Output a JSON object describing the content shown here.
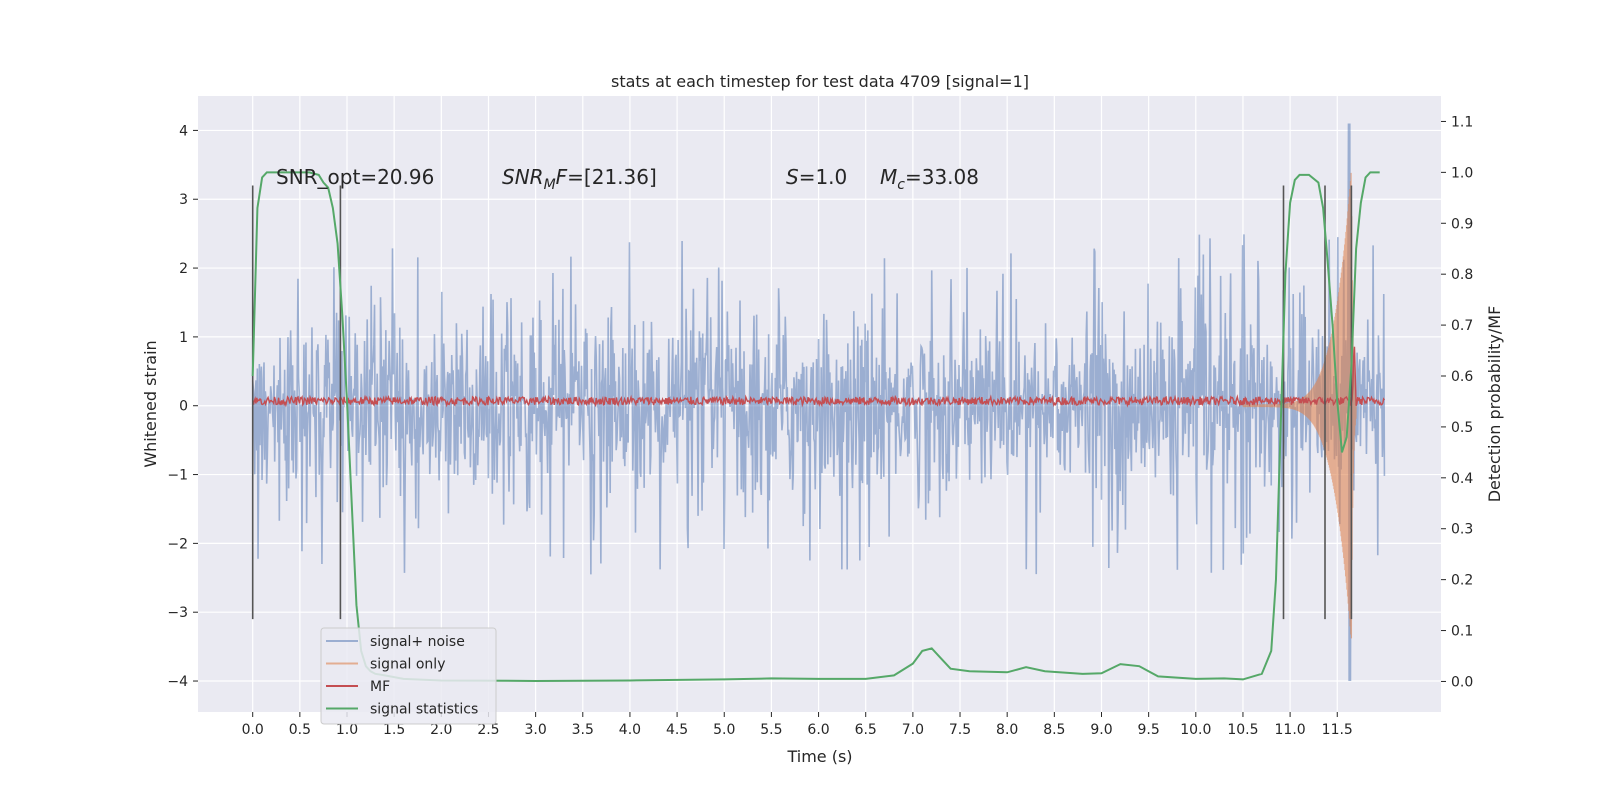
{
  "chart_data": {
    "type": "line",
    "title": "stats at each timestep for test data 4709 [signal=1]",
    "xlabel": "Time (s)",
    "ylabel_left": "Whitened strain",
    "ylabel_right": "Detection probability/MF",
    "xlim": [
      -0.58,
      12.6
    ],
    "ylim_left": [
      -4.45,
      4.5
    ],
    "ylim_right": [
      -0.06,
      1.15
    ],
    "x_ticks": [
      0.0,
      0.5,
      1.0,
      1.5,
      2.0,
      2.5,
      3.0,
      3.5,
      4.0,
      4.5,
      5.0,
      5.5,
      6.0,
      6.5,
      7.0,
      7.5,
      8.0,
      8.5,
      9.0,
      9.5,
      10.0,
      10.5,
      11.0,
      11.5
    ],
    "x_tick_labels": [
      "0.0",
      "0.5",
      "1.0",
      "1.5",
      "2.0",
      "2.5",
      "3.0",
      "3.5",
      "4.0",
      "4.5",
      "5.0",
      "5.5",
      "6.0",
      "6.5",
      "7.0",
      "7.5",
      "8.0",
      "8.5",
      "9.0",
      "9.5",
      "10.0",
      "10.5",
      "11.0",
      "11.5"
    ],
    "y_left_ticks": [
      -4,
      -3,
      -2,
      -1,
      0,
      1,
      2,
      3,
      4
    ],
    "y_left_tick_labels": [
      "−4",
      "−3",
      "−2",
      "−1",
      "0",
      "1",
      "2",
      "3",
      "4"
    ],
    "y_right_ticks": [
      0.0,
      0.1,
      0.2,
      0.3,
      0.4,
      0.5,
      0.6,
      0.7,
      0.8,
      0.9,
      1.0,
      1.1
    ],
    "y_right_tick_labels": [
      "0.0",
      "0.1",
      "0.2",
      "0.3",
      "0.4",
      "0.5",
      "0.6",
      "0.7",
      "0.8",
      "0.9",
      "1.0",
      "1.1"
    ],
    "grid": true,
    "legend_position": "lower-left",
    "annotations": {
      "snr_opt": "SNR_opt=20.96",
      "snr_mf_sym": "SNR",
      "snr_mf_sub": "M",
      "snr_mf_rest": "F",
      "snr_mf_value": "=[21.36]",
      "s_sym": "S",
      "s_value": "=1.0",
      "mc_sym": "M",
      "mc_sub": "c",
      "mc_value": "=33.08"
    },
    "marker_lines_x": [
      0.0,
      0.93,
      10.93,
      11.37,
      11.65
    ],
    "marker_line_range": [
      -3.1,
      3.2
    ],
    "series": [
      {
        "name": "signal+ noise",
        "color": "#4c72b0",
        "x_range": [
          0.0,
          12.0
        ],
        "rms": 1.0,
        "peak_max": 4.1,
        "peak_min": -4.0
      },
      {
        "name": "signal only",
        "color": "#dd8452",
        "x_range": [
          10.5,
          11.7
        ],
        "envelope_start": 0.02,
        "envelope_peak": 3.6,
        "peak_time": 11.65
      },
      {
        "name": "MF",
        "color": "#c44e52",
        "x_range": [
          0.0,
          12.0
        ],
        "level": 0.07,
        "peak_time": 11.68,
        "peak_value": 1.0
      },
      {
        "name": "signal statistics",
        "color": "#55a868",
        "axis": "right",
        "x": [
          0.0,
          0.05,
          0.1,
          0.15,
          0.2,
          0.3,
          0.4,
          0.5,
          0.6,
          0.7,
          0.75,
          0.8,
          0.85,
          0.9,
          0.95,
          1.0,
          1.05,
          1.1,
          1.15,
          1.2,
          1.25,
          1.3,
          1.4,
          1.6,
          2.0,
          3.0,
          4.0,
          5.0,
          5.5,
          6.0,
          6.5,
          6.8,
          7.0,
          7.1,
          7.2,
          7.3,
          7.4,
          7.6,
          8.0,
          8.2,
          8.4,
          8.8,
          9.0,
          9.2,
          9.4,
          9.6,
          10.0,
          10.3,
          10.5,
          10.7,
          10.8,
          10.85,
          10.9,
          10.95,
          11.0,
          11.05,
          11.1,
          11.2,
          11.3,
          11.35,
          11.4,
          11.45,
          11.5,
          11.55,
          11.6,
          11.65,
          11.7,
          11.75,
          11.8,
          11.85,
          11.9,
          11.95
        ],
        "values": [
          0.6,
          0.93,
          0.99,
          1.0,
          1.0,
          1.0,
          1.0,
          1.0,
          1.0,
          0.995,
          0.98,
          0.97,
          0.93,
          0.86,
          0.72,
          0.55,
          0.35,
          0.15,
          0.06,
          0.03,
          0.02,
          0.015,
          0.012,
          0.005,
          0.002,
          0.001,
          0.002,
          0.004,
          0.006,
          0.005,
          0.005,
          0.012,
          0.035,
          0.06,
          0.065,
          0.045,
          0.025,
          0.02,
          0.018,
          0.028,
          0.02,
          0.015,
          0.016,
          0.034,
          0.03,
          0.01,
          0.005,
          0.006,
          0.004,
          0.015,
          0.06,
          0.2,
          0.5,
          0.8,
          0.94,
          0.985,
          0.995,
          0.995,
          0.98,
          0.93,
          0.82,
          0.7,
          0.55,
          0.45,
          0.48,
          0.62,
          0.85,
          0.94,
          0.99,
          1.0,
          1.0,
          1.0
        ]
      }
    ]
  }
}
